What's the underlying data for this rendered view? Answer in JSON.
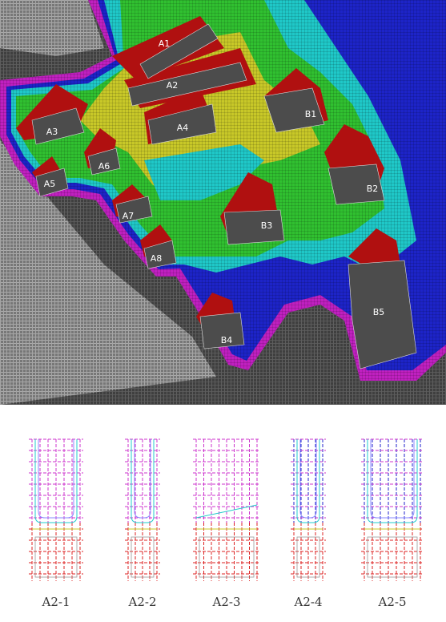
{
  "site_plan": {
    "labels": [
      "A1",
      "A2",
      "A3",
      "A4",
      "A5",
      "A6",
      "A7",
      "A8",
      "B1",
      "B2",
      "B3",
      "B4",
      "B5"
    ]
  },
  "details": {
    "labels": [
      "A2-1",
      "A2-2",
      "A2-3",
      "A2-4",
      "A2-5"
    ]
  }
}
